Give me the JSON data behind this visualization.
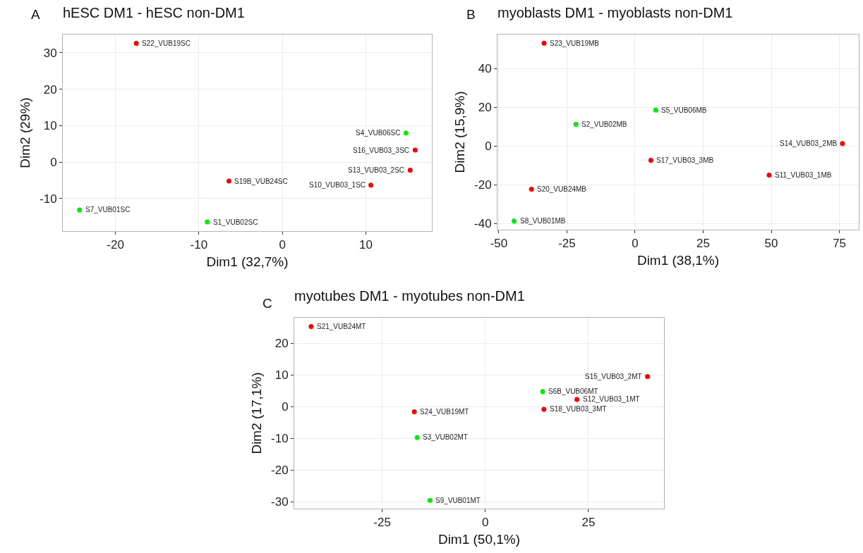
{
  "chart_data": [
    {
      "type": "scatter",
      "title": "hESC DM1 - hESC non-DM1",
      "xlabel": "Dim1 (32,7%)",
      "ylabel": "Dim2 (29%)",
      "xlim": [
        -26.3,
        17.9
      ],
      "ylim": [
        -18.9,
        35
      ],
      "xticks": [
        -20,
        -10,
        0,
        10
      ],
      "yticks": [
        -10,
        0,
        10,
        20,
        30
      ],
      "grid": true,
      "marker": "circle",
      "series": [
        {
          "color": "#ff0000",
          "x": [
            -17.5,
            15.9,
            15.3,
            10.6,
            -6.4
          ],
          "values": [
            32.6,
            3.3,
            -2.2,
            -6.3,
            -5.2
          ]
        },
        {
          "color": "#00ee00",
          "x": [
            14.8,
            -24.3,
            -9.0
          ],
          "values": [
            8.0,
            -13.1,
            -16.4
          ]
        }
      ],
      "annotations": [
        "A",
        {
          "text": "S22_VUB19SC",
          "x": -17.5,
          "y": 32.6
        },
        {
          "text": "S16_VUB03_3SC",
          "x": 15.9,
          "y": 3.3
        },
        {
          "text": "S13_VUB03_2SC",
          "x": 15.3,
          "y": -2.2
        },
        {
          "text": "S10_VUB03_1SC",
          "x": 10.6,
          "y": -6.3
        },
        {
          "text": "S19B_VUB24SC",
          "x": -6.4,
          "y": -5.2
        },
        {
          "text": "S4_VUB06SC",
          "x": 14.8,
          "y": 8.0
        },
        {
          "text": "S7_VUB01SC",
          "x": -24.3,
          "y": -13.1
        },
        {
          "text": "S1_VUB02SC",
          "x": -9.0,
          "y": -16.4
        }
      ]
    },
    {
      "type": "scatter",
      "title": "myoblasts DM1 - myoblasts non-DM1",
      "xlabel": "Dim1 (38,1%)",
      "ylabel": "Dim2 (15,9%)",
      "xlim": [
        -50.5,
        82.1
      ],
      "ylim": [
        -43.2,
        57.6
      ],
      "xticks": [
        -50,
        -25,
        0,
        25,
        50,
        75
      ],
      "yticks": [
        -40,
        -20,
        0,
        20,
        40
      ],
      "grid": true,
      "marker": "circle",
      "series": [
        {
          "color": "#ff0000",
          "x": [
            -33.4,
            76.1,
            5.8,
            49.2,
            -38.0
          ],
          "values": [
            53.1,
            1.3,
            -7.4,
            -15.0,
            -22.3
          ]
        },
        {
          "color": "#00ee00",
          "x": [
            7.6,
            -21.7,
            -44.4
          ],
          "values": [
            18.6,
            11.2,
            -38.7
          ]
        }
      ],
      "annotations": [
        "B",
        {
          "text": "S23_VUB19MB",
          "x": -33.4,
          "y": 53.1
        },
        {
          "text": "S14_VUB03_2MB",
          "x": 76.1,
          "y": 1.3
        },
        {
          "text": "S17_VUB03_3MB",
          "x": 5.8,
          "y": -7.4
        },
        {
          "text": "S11_VUB03_1MB",
          "x": 49.2,
          "y": -15.0
        },
        {
          "text": "S20_VUB24MB",
          "x": -38.0,
          "y": -22.3
        },
        {
          "text": "S5_VUB06MB",
          "x": 7.6,
          "y": 18.6
        },
        {
          "text": "S2_VUB02MB",
          "x": -21.7,
          "y": 11.2
        },
        {
          "text": "S8_VUB01MB",
          "x": -44.4,
          "y": -38.7
        }
      ]
    },
    {
      "type": "scatter",
      "title": "myotubes DM1 - myotubes non-DM1",
      "xlabel": "Dim1 (50,1%)",
      "ylabel": "Dim2 (17,1%)",
      "xlim": [
        -46.3,
        43.3
      ],
      "ylim": [
        -32.2,
        28.1
      ],
      "xticks": [
        -25,
        0,
        25
      ],
      "yticks": [
        -30,
        -20,
        -10,
        0,
        10,
        20
      ],
      "grid": true,
      "marker": "circle",
      "series": [
        {
          "color": "#ff0000",
          "x": [
            -42.2,
            39.3,
            22.2,
            14.2,
            -17.2
          ],
          "values": [
            25.3,
            9.5,
            2.3,
            -0.8,
            -1.6
          ]
        },
        {
          "color": "#00ee00",
          "x": [
            13.9,
            -16.5,
            -13.4
          ],
          "values": [
            4.8,
            -9.7,
            -29.6
          ]
        }
      ],
      "annotations": [
        "C",
        {
          "text": "S21_VUB24MT",
          "x": -42.2,
          "y": 25.3
        },
        {
          "text": "S15_VUB03_2MT",
          "x": 39.3,
          "y": 9.5
        },
        {
          "text": "S12_VUB03_1MT",
          "x": 22.2,
          "y": 2.3
        },
        {
          "text": "S18_VUB03_3MT",
          "x": 14.2,
          "y": -0.8
        },
        {
          "text": "S24_VUB19MT",
          "x": -17.2,
          "y": -1.6
        },
        {
          "text": "S6B_VUB06MT",
          "x": 13.9,
          "y": 4.8
        },
        {
          "text": "S3_VUB02MT",
          "x": -16.5,
          "y": -9.7
        },
        {
          "text": "S9_VUB01MT",
          "x": -13.4,
          "y": -29.6
        }
      ]
    }
  ]
}
